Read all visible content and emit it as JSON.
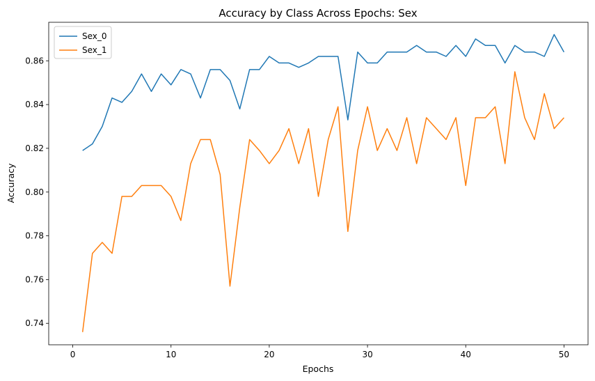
{
  "chart_data": {
    "type": "line",
    "title": "Accuracy by Class Across Epochs: Sex",
    "xlabel": "Epochs",
    "ylabel": "Accuracy",
    "xlim": [
      -2.45,
      52.45
    ],
    "ylim": [
      0.7302,
      0.8776
    ],
    "xticks": [
      0,
      10,
      20,
      30,
      40,
      50
    ],
    "xtick_labels": [
      "0",
      "10",
      "20",
      "30",
      "40",
      "50"
    ],
    "yticks": [
      0.74,
      0.76,
      0.78,
      0.8,
      0.82,
      0.84,
      0.86
    ],
    "ytick_labels": [
      "0.74",
      "0.76",
      "0.78",
      "0.80",
      "0.82",
      "0.84",
      "0.86"
    ],
    "grid": false,
    "legend_position": "top-left",
    "x": [
      1,
      2,
      3,
      4,
      5,
      6,
      7,
      8,
      9,
      10,
      11,
      12,
      13,
      14,
      15,
      16,
      17,
      18,
      19,
      20,
      21,
      22,
      23,
      24,
      25,
      26,
      27,
      28,
      29,
      30,
      31,
      32,
      33,
      34,
      35,
      36,
      37,
      38,
      39,
      40,
      41,
      42,
      43,
      44,
      45,
      46,
      47,
      48,
      49,
      50
    ],
    "series": [
      {
        "name": "Sex_0",
        "color": "#1f77b4",
        "values": [
          0.819,
          0.822,
          0.83,
          0.843,
          0.841,
          0.846,
          0.854,
          0.846,
          0.854,
          0.849,
          0.856,
          0.854,
          0.843,
          0.856,
          0.856,
          0.851,
          0.838,
          0.856,
          0.856,
          0.862,
          0.859,
          0.859,
          0.857,
          0.859,
          0.862,
          0.862,
          0.862,
          0.833,
          0.864,
          0.859,
          0.859,
          0.864,
          0.864,
          0.864,
          0.867,
          0.864,
          0.864,
          0.862,
          0.867,
          0.862,
          0.87,
          0.867,
          0.867,
          0.859,
          0.867,
          0.864,
          0.864,
          0.862,
          0.872,
          0.864
        ]
      },
      {
        "name": "Sex_1",
        "color": "#ff7f0e",
        "values": [
          0.736,
          0.772,
          0.777,
          0.772,
          0.798,
          0.798,
          0.803,
          0.803,
          0.803,
          0.798,
          0.787,
          0.813,
          0.824,
          0.824,
          0.808,
          0.757,
          0.793,
          0.824,
          0.819,
          0.813,
          0.819,
          0.829,
          0.813,
          0.829,
          0.798,
          0.824,
          0.839,
          0.782,
          0.819,
          0.839,
          0.819,
          0.829,
          0.819,
          0.834,
          0.813,
          0.834,
          0.829,
          0.824,
          0.834,
          0.803,
          0.834,
          0.834,
          0.839,
          0.813,
          0.855,
          0.834,
          0.824,
          0.845,
          0.829,
          0.834
        ]
      }
    ]
  }
}
